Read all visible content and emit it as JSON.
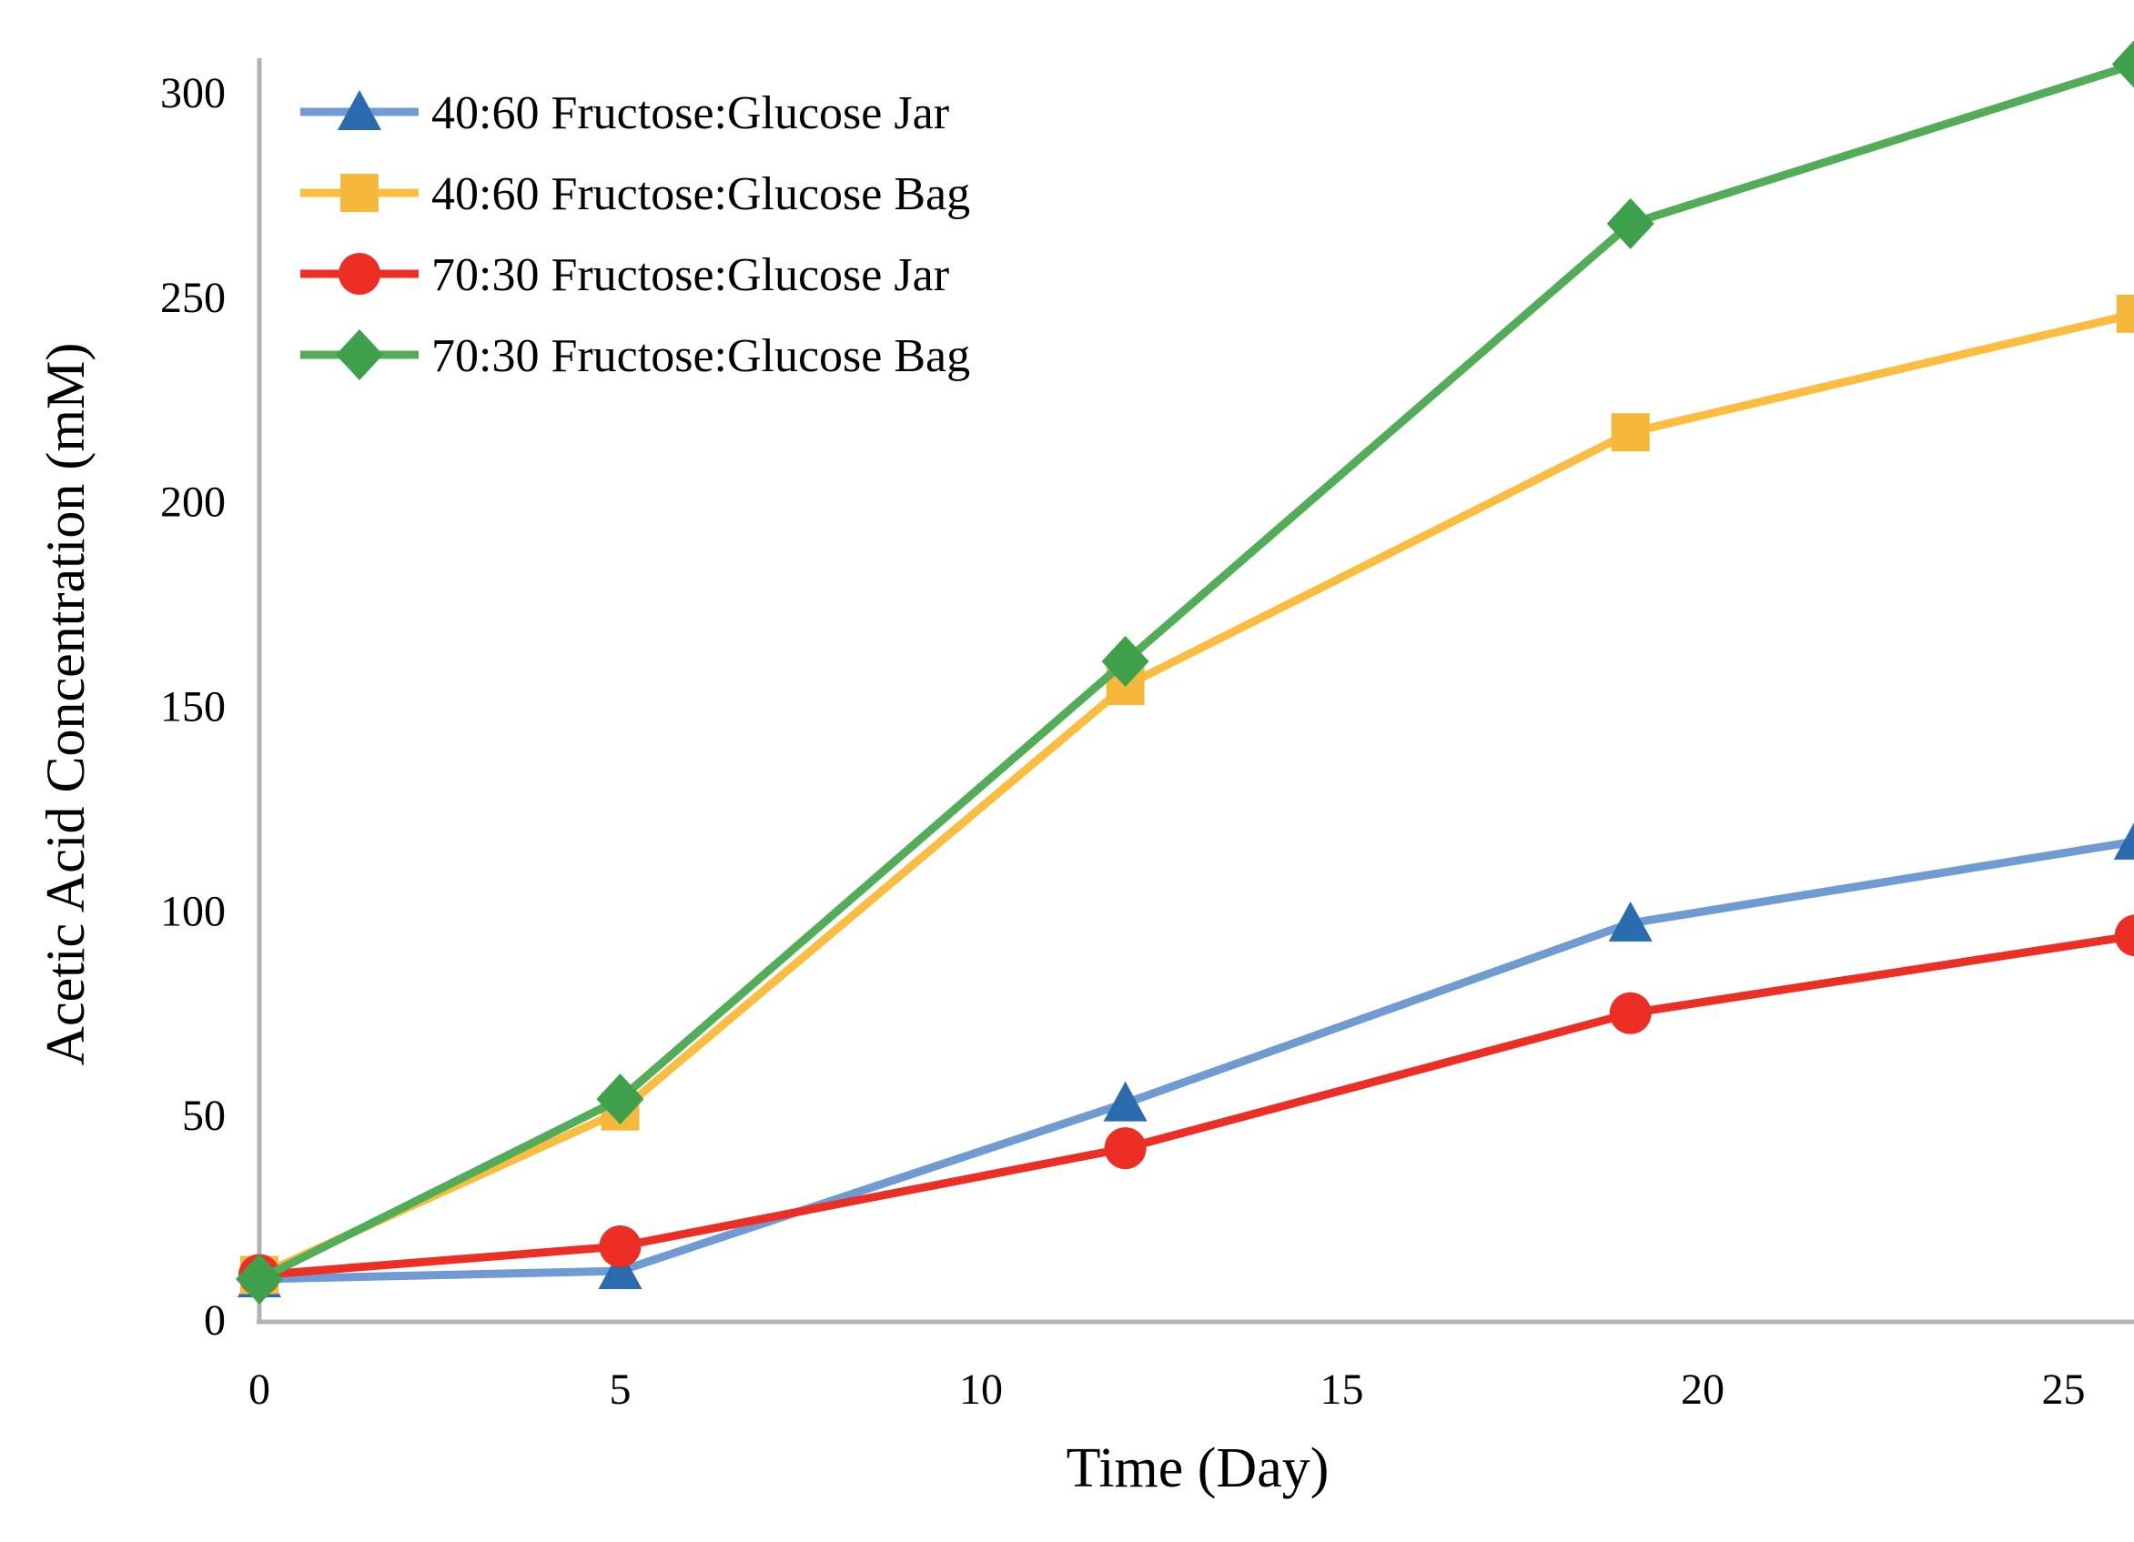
{
  "figure": {
    "background": "#ffffff",
    "axis_line_color": "#b3b3b3",
    "text_color": "#000000"
  },
  "chart_data": {
    "type": "line",
    "title": "",
    "xlabel": "Time (Day)",
    "ylabel": "Acetic Acid Concentration (mM)",
    "x": [
      0,
      5,
      12,
      19,
      26
    ],
    "xlim": [
      0,
      26
    ],
    "ylim": [
      0,
      300
    ],
    "x_ticks": [
      0,
      5,
      10,
      15,
      20,
      25
    ],
    "y_ticks": [
      0,
      50,
      100,
      150,
      200,
      250,
      300
    ],
    "grid": false,
    "legend_position": "top-left-inside",
    "series": [
      {
        "name": "40:60 Fructose:Glucose Jar",
        "marker": "triangle",
        "line_color": "#6f9bd2",
        "marker_color": "#2a6bb0",
        "values": [
          10,
          12,
          53,
          97,
          117
        ]
      },
      {
        "name": "40:60 Fructose:Glucose Bag",
        "marker": "square",
        "line_color": "#fbbd3f",
        "marker_color": "#f6b83b",
        "values": [
          11,
          51,
          155,
          217,
          246
        ]
      },
      {
        "name": "70:30 Fructose:Glucose Jar",
        "marker": "circle",
        "line_color": "#ed2e24",
        "marker_color": "#ed2e24",
        "values": [
          11,
          18,
          42,
          75,
          94
        ]
      },
      {
        "name": "70:30 Fructose:Glucose Bag",
        "marker": "diamond",
        "line_color": "#53ad58",
        "marker_color": "#3fa04c",
        "values": [
          10,
          54,
          161,
          268,
          307
        ]
      }
    ]
  }
}
